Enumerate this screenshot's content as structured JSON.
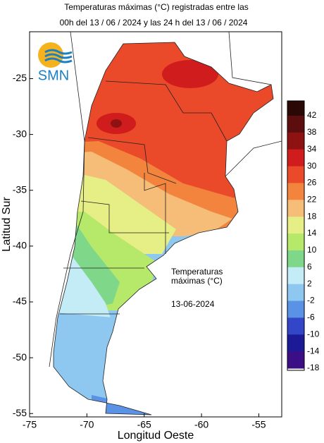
{
  "header": {
    "line1": "Temperaturas máximas (°C) registradas entre las",
    "line2": "00h del 13 / 06 / 2024 y las 24 h del 13 / 06 / 2024"
  },
  "logo": "SMN",
  "map": {
    "x_label": "Longitud Oeste",
    "y_label": "Latitud Sur",
    "xlim": [
      -75,
      -53
    ],
    "ylim": [
      -55.3,
      -20.8
    ],
    "xticks": [
      -75,
      -70,
      -65,
      -60,
      -55
    ],
    "yticks": [
      -25,
      -30,
      -35,
      -40,
      -45,
      -50,
      -55
    ]
  },
  "annotation": {
    "line1": "Temperaturas",
    "line2": "máximas (°C)",
    "date": "13-06-2024"
  },
  "legend": {
    "levels": [
      42,
      38,
      34,
      30,
      26,
      22,
      18,
      14,
      10,
      6,
      2,
      -2,
      -6,
      -10,
      -14,
      -18
    ],
    "colors": [
      "#2a0805",
      "#5c0e0e",
      "#8e1212",
      "#d01c1c",
      "#ea4a2a",
      "#f2843e",
      "#f5bd78",
      "#e6ee86",
      "#b6e86a",
      "#7fd88a",
      "#c4ecf6",
      "#8ec8f0",
      "#5a92e6",
      "#3346c8",
      "#1c1a96",
      "#3c0e86"
    ]
  }
}
